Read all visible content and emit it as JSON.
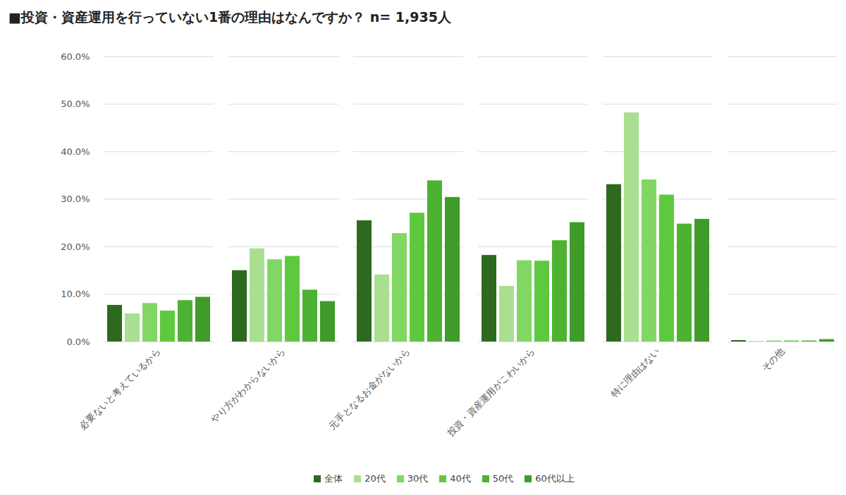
{
  "chart_data": {
    "type": "bar",
    "title": "■投資・資産運用を行っていない1番の理由はなんですか？ n= 1,935人",
    "categories": [
      "必要ないと考えているから",
      "やり方がわからないから",
      "元手となるお金がないから",
      "投資・資産運用がこわいから",
      "特に理由はない",
      "その他"
    ],
    "series": [
      {
        "name": "全体",
        "color": "#2d6a1f",
        "values": [
          7.7,
          15.0,
          25.5,
          18.2,
          33.1,
          0.3
        ]
      },
      {
        "name": "20代",
        "color": "#a9df91",
        "values": [
          5.9,
          19.6,
          14.1,
          11.7,
          48.2,
          0.1
        ]
      },
      {
        "name": "30代",
        "color": "#80d764",
        "values": [
          8.1,
          17.3,
          22.8,
          17.1,
          34.1,
          0.2
        ]
      },
      {
        "name": "40代",
        "color": "#5ec93e",
        "values": [
          6.5,
          18.0,
          27.1,
          17.0,
          30.9,
          0.2
        ]
      },
      {
        "name": "50代",
        "color": "#4db232",
        "values": [
          8.7,
          10.9,
          33.9,
          21.3,
          24.8,
          0.2
        ]
      },
      {
        "name": "60代以上",
        "color": "#3f9b2a",
        "values": [
          9.4,
          8.5,
          30.4,
          25.1,
          25.8,
          0.5
        ]
      }
    ],
    "ylim": [
      0,
      60
    ],
    "yticks": [
      {
        "value": 0,
        "label": "0.0%"
      },
      {
        "value": 10,
        "label": "10.0%"
      },
      {
        "value": 20,
        "label": "20.0%"
      },
      {
        "value": 30,
        "label": "30.0%"
      },
      {
        "value": 40,
        "label": "40.0%"
      },
      {
        "value": 50,
        "label": "50.0%"
      },
      {
        "value": 60,
        "label": "60.0%"
      }
    ],
    "grid": true,
    "legend": "bottom"
  }
}
